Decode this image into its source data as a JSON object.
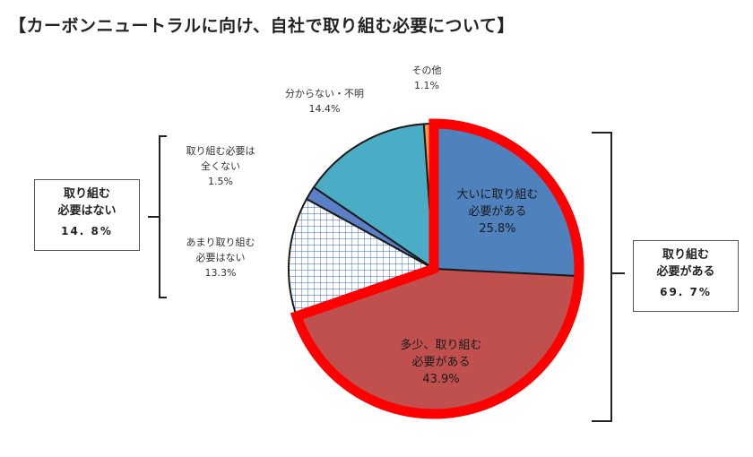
{
  "title": "【カーボンニュートラルに向け、自社で取り組む必要について】",
  "chart_data": {
    "type": "pie",
    "slices": [
      {
        "label": "大いに取り組む必要がある",
        "label_lines": [
          "大いに取り組む",
          "必要がある"
        ],
        "value": 25.8,
        "value_text": "25.8%",
        "color": "#4f81bd",
        "pattern": "solid"
      },
      {
        "label": "多少、取り組む必要がある",
        "label_lines": [
          "多少、取り組む",
          "必要がある"
        ],
        "value": 43.9,
        "value_text": "43.9%",
        "color": "#c0504d",
        "pattern": "solid"
      },
      {
        "label": "あまり取り組む必要はない",
        "label_lines": [
          "あまり取り組む",
          "必要はない"
        ],
        "value": 13.3,
        "value_text": "13.3%",
        "color": "#3366cc",
        "pattern": "grid"
      },
      {
        "label": "取り組む必要は全くない",
        "label_lines": [
          "取り組む必要は",
          "全くない"
        ],
        "value": 1.5,
        "value_text": "1.5%",
        "color": "#5b7fc7",
        "pattern": "solid"
      },
      {
        "label": "分からない・不明",
        "label_lines": [
          "分からない・不明"
        ],
        "value": 14.4,
        "value_text": "14.4%",
        "color": "#4bacc6",
        "pattern": "solid"
      },
      {
        "label": "その他",
        "label_lines": [
          "その他"
        ],
        "value": 1.1,
        "value_text": "1.1%",
        "color": "#f79646",
        "pattern": "solid"
      }
    ],
    "start_angle_deg": 0,
    "direction": "clockwise",
    "highlight_color": "#ff0000",
    "groups": [
      {
        "label_lines": [
          "取り組む",
          "必要がある"
        ],
        "value_text": "69. 7%",
        "members": [
          "大いに取り組む必要がある",
          "多少、取り組む必要がある"
        ]
      },
      {
        "label_lines": [
          "取り組む",
          "必要はない"
        ],
        "value_text": "14. 8%",
        "members": [
          "あまり取り組む必要はない",
          "取り組む必要は全くない"
        ]
      }
    ]
  }
}
